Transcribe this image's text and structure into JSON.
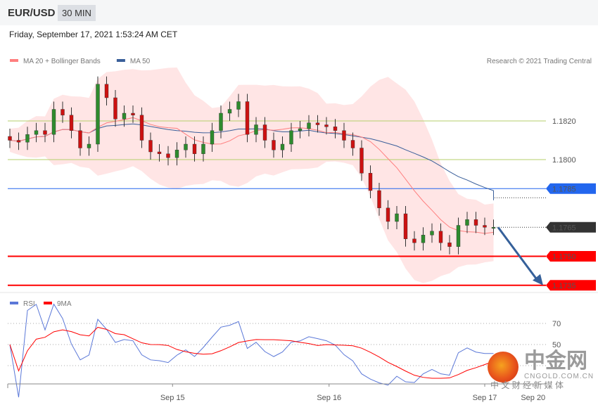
{
  "header": {
    "symbol": "EUR/USD",
    "timeframe": "30 MIN",
    "datetime": "Friday, September 17, 2021 1:53:24 AM CET"
  },
  "legend_top": [
    {
      "label": "MA 20 + Bollinger Bands",
      "color": "#ff7f7f"
    },
    {
      "label": "MA 50",
      "color": "#3a5f9a"
    }
  ],
  "legend_bottom": [
    {
      "label": "RSI",
      "color": "#5b78d8"
    },
    {
      "label": "9MA",
      "color": "#ff0000"
    }
  ],
  "copyright": "Research © 2021 Trading Central",
  "watermark": {
    "name": "中金网",
    "domain": "CNGOLD.COM.CN",
    "tagline": "中 文 财 经 新 媒 体"
  },
  "chart_data": {
    "type": "candlestick",
    "ylim": [
      1.173,
      1.1845
    ],
    "closes": [
      1.181,
      1.1809,
      1.1813,
      1.1815,
      1.1813,
      1.1826,
      1.1823,
      1.1815,
      1.1806,
      1.1808,
      1.1839,
      1.1832,
      1.1821,
      1.1824,
      1.1823,
      1.181,
      1.1804,
      1.1803,
      1.1801,
      1.1805,
      1.1808,
      1.1803,
      1.1808,
      1.1815,
      1.1824,
      1.1826,
      1.183,
      1.1813,
      1.1818,
      1.181,
      1.1805,
      1.1808,
      1.1815,
      1.1816,
      1.1819,
      1.1818,
      1.1817,
      1.1815,
      1.181,
      1.1806,
      1.1793,
      1.1784,
      1.1775,
      1.1768,
      1.1772,
      1.1759,
      1.1757,
      1.1761,
      1.1763,
      1.1757,
      1.1755,
      1.1766,
      1.1769,
      1.1766,
      1.1765,
      1.1765
    ],
    "colors": {
      "up": "#2e8b2e",
      "down": "#cc1111",
      "band": "#ffe1e1",
      "ma20": "#ff7f7f",
      "ma50": "#3a5f9a"
    },
    "levels": [
      {
        "value": 1.182,
        "label": "1.1820",
        "style": "support",
        "color": "#b5cf6b"
      },
      {
        "value": 1.18,
        "label": "1.1800",
        "style": "support",
        "color": "#b5cf6b"
      },
      {
        "value": 1.1785,
        "label": "1.1785",
        "style": "pivot",
        "color": "#2266ee"
      },
      {
        "value": 1.1765,
        "label": "1.1765",
        "style": "last",
        "color": "#333333"
      },
      {
        "value": 1.175,
        "label": "1.1750",
        "style": "target",
        "color": "#ff0000"
      },
      {
        "value": 1.1735,
        "label": "1.1735",
        "style": "target",
        "color": "#ff0000"
      }
    ],
    "arrow": {
      "from": 1.1765,
      "to": 1.1735,
      "color": "#35609a"
    },
    "x_ticks": [
      {
        "label": "Sep 15",
        "index": 18.5
      },
      {
        "label": "Sep 16",
        "index": 36.3
      },
      {
        "label": "Sep 17",
        "index": 54
      },
      {
        "label": "Sep 20",
        "index": 59.5
      }
    ],
    "rsi_levels": [
      {
        "value": 70,
        "label": "70"
      },
      {
        "value": 50,
        "label": "50"
      },
      {
        "value": 30,
        "label": ""
      }
    ]
  }
}
